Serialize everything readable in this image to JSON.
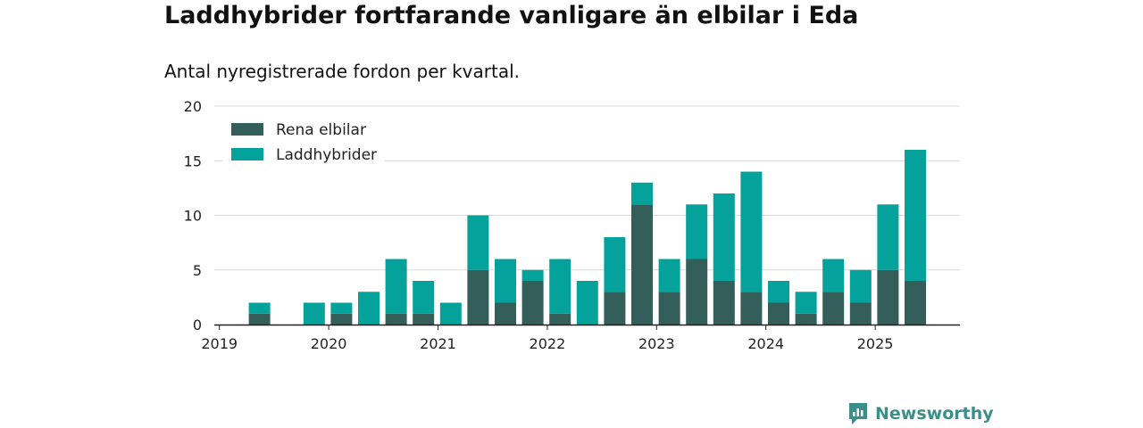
{
  "title": "Laddhybrider fortfarande vanligare än elbilar i Eda",
  "subtitle": "Antal nyregistrerade fordon per kvartal.",
  "brand": {
    "name": "Newsworthy",
    "icon": "newsworthy-logo-icon",
    "color": "#3a8f8a"
  },
  "chart_data": {
    "type": "bar",
    "stacked": true,
    "categories": [
      "2019 Q1",
      "2019 Q2",
      "2019 Q3",
      "2019 Q4",
      "2020 Q1",
      "2020 Q2",
      "2020 Q3",
      "2020 Q4",
      "2021 Q1",
      "2021 Q2",
      "2021 Q3",
      "2021 Q4",
      "2022 Q1",
      "2022 Q2",
      "2022 Q3",
      "2022 Q4",
      "2023 Q1",
      "2023 Q2",
      "2023 Q3",
      "2023 Q4",
      "2024 Q1",
      "2024 Q2",
      "2024 Q3",
      "2024 Q4",
      "2025 Q1",
      "2025 Q2"
    ],
    "series": [
      {
        "name": "Rena elbilar",
        "color": "#335e5a",
        "values": [
          0,
          1,
          0,
          0,
          1,
          0,
          1,
          1,
          0,
          5,
          2,
          4,
          1,
          0,
          3,
          11,
          3,
          6,
          4,
          3,
          2,
          1,
          3,
          2,
          5,
          4
        ]
      },
      {
        "name": "Laddhybrider",
        "color": "#04a29a",
        "values": [
          0,
          1,
          0,
          2,
          1,
          3,
          5,
          3,
          2,
          5,
          4,
          1,
          5,
          4,
          5,
          2,
          3,
          5,
          8,
          11,
          2,
          2,
          3,
          3,
          6,
          12
        ]
      }
    ],
    "x_tick_labels": [
      "2019",
      "2020",
      "2021",
      "2022",
      "2023",
      "2024",
      "2025"
    ],
    "y_ticks": [
      0,
      5,
      10,
      15,
      20
    ],
    "ylim": [
      0,
      20
    ],
    "grid": true,
    "legend_position": "top-left"
  }
}
